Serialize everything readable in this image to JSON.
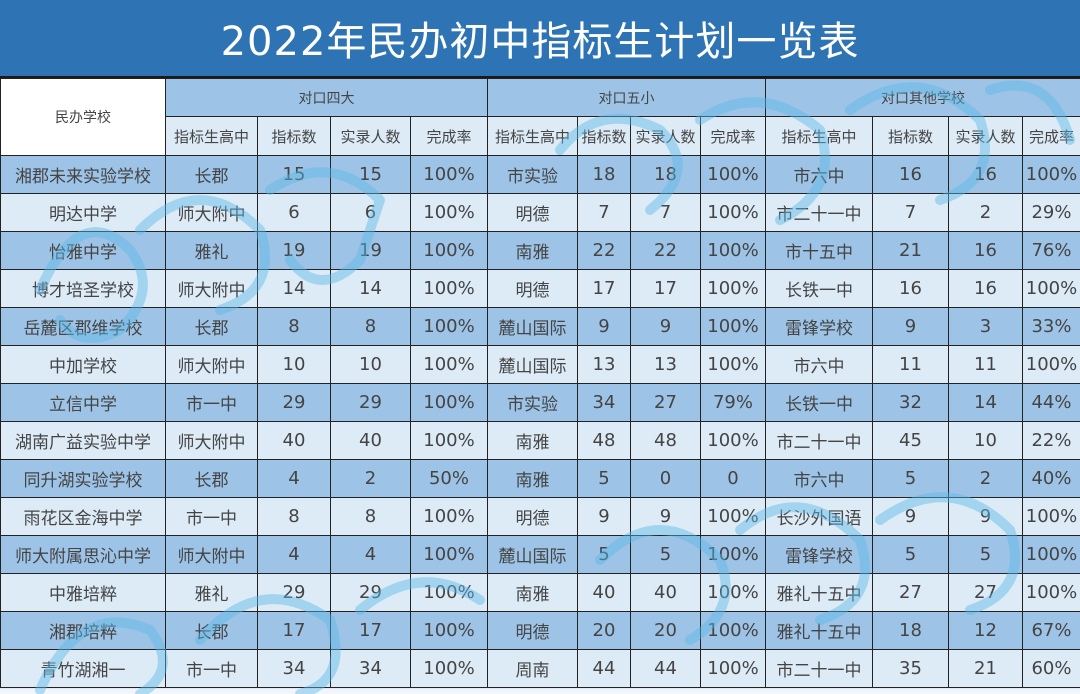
{
  "title": "2022年民办初中指标生计划一览表",
  "header": {
    "school_col": "民办学校",
    "groups": [
      {
        "label": "对口四大"
      },
      {
        "label": "对口五小"
      },
      {
        "label": "对口其他学校"
      }
    ],
    "sub_columns": [
      "指标生高中",
      "指标数",
      "实录人数",
      "完成率"
    ]
  },
  "colors": {
    "title_bg": "#2e74b5",
    "row_dark": "#9dc3e6",
    "row_light": "#ddebf7",
    "border": "#222222"
  },
  "rows": [
    {
      "school": "湘郡未来实验学校",
      "g1": [
        "长郡",
        "15",
        "15",
        "100%"
      ],
      "g2": [
        "市实验",
        "18",
        "18",
        "100%"
      ],
      "g3": [
        "市六中",
        "16",
        "16",
        "100%"
      ]
    },
    {
      "school": "明达中学",
      "g1": [
        "师大附中",
        "6",
        "6",
        "100%"
      ],
      "g2": [
        "明德",
        "7",
        "7",
        "100%"
      ],
      "g3": [
        "市二十一中",
        "7",
        "2",
        "29%"
      ]
    },
    {
      "school": "怡雅中学",
      "g1": [
        "雅礼",
        "19",
        "19",
        "100%"
      ],
      "g2": [
        "南雅",
        "22",
        "22",
        "100%"
      ],
      "g3": [
        "市十五中",
        "21",
        "16",
        "76%"
      ]
    },
    {
      "school": "博才培圣学校",
      "g1": [
        "师大附中",
        "14",
        "14",
        "100%"
      ],
      "g2": [
        "明德",
        "17",
        "17",
        "100%"
      ],
      "g3": [
        "长铁一中",
        "16",
        "16",
        "100%"
      ]
    },
    {
      "school": "岳麓区郡维学校",
      "g1": [
        "长郡",
        "8",
        "8",
        "100%"
      ],
      "g2": [
        "麓山国际",
        "9",
        "9",
        "100%"
      ],
      "g3": [
        "雷锋学校",
        "9",
        "3",
        "33%"
      ]
    },
    {
      "school": "中加学校",
      "g1": [
        "师大附中",
        "10",
        "10",
        "100%"
      ],
      "g2": [
        "麓山国际",
        "13",
        "13",
        "100%"
      ],
      "g3": [
        "市六中",
        "11",
        "11",
        "100%"
      ]
    },
    {
      "school": "立信中学",
      "g1": [
        "市一中",
        "29",
        "29",
        "100%"
      ],
      "g2": [
        "市实验",
        "34",
        "27",
        "79%"
      ],
      "g3": [
        "长铁一中",
        "32",
        "14",
        "44%"
      ]
    },
    {
      "school": "湖南广益实验中学",
      "g1": [
        "师大附中",
        "40",
        "40",
        "100%"
      ],
      "g2": [
        "南雅",
        "48",
        "48",
        "100%"
      ],
      "g3": [
        "市二十一中",
        "45",
        "10",
        "22%"
      ]
    },
    {
      "school": "同升湖实验学校",
      "g1": [
        "长郡",
        "4",
        "2",
        "50%"
      ],
      "g2": [
        "南雅",
        "5",
        "0",
        "0"
      ],
      "g3": [
        "市六中",
        "5",
        "2",
        "40%"
      ]
    },
    {
      "school": "雨花区金海中学",
      "g1": [
        "市一中",
        "8",
        "8",
        "100%"
      ],
      "g2": [
        "明德",
        "9",
        "9",
        "100%"
      ],
      "g3": [
        "长沙外国语",
        "9",
        "9",
        "100%"
      ]
    },
    {
      "school": "师大附属思沁中学",
      "g1": [
        "师大附中",
        "4",
        "4",
        "100%"
      ],
      "g2": [
        "麓山国际",
        "5",
        "5",
        "100%"
      ],
      "g3": [
        "雷锋学校",
        "5",
        "5",
        "100%"
      ]
    },
    {
      "school": "中雅培粹",
      "g1": [
        "雅礼",
        "29",
        "29",
        "100%"
      ],
      "g2": [
        "南雅",
        "40",
        "40",
        "100%"
      ],
      "g3": [
        "雅礼十五中",
        "27",
        "27",
        "100%"
      ]
    },
    {
      "school": "湘郡培粹",
      "g1": [
        "长郡",
        "17",
        "17",
        "100%"
      ],
      "g2": [
        "明德",
        "20",
        "20",
        "100%"
      ],
      "g3": [
        "雅礼十五中",
        "18",
        "12",
        "67%"
      ]
    },
    {
      "school": "青竹湖湘一",
      "g1": [
        "市一中",
        "34",
        "34",
        "100%"
      ],
      "g2": [
        "周南",
        "44",
        "44",
        "100%"
      ],
      "g3": [
        "市二十一中",
        "35",
        "21",
        "60%"
      ]
    }
  ]
}
